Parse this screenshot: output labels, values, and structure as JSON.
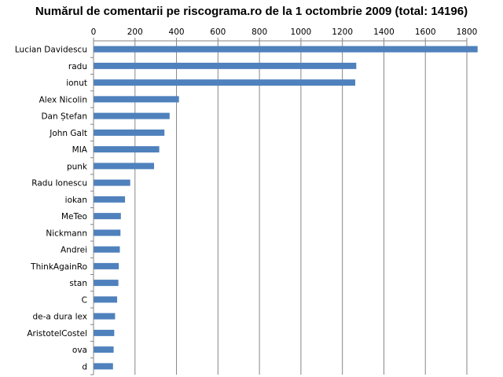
{
  "chart_data": {
    "type": "bar",
    "orientation": "horizontal",
    "title": "Numărul de comentarii pe riscograma.ro de la 1 octombrie 2009 (total: 14196)",
    "xlabel": "",
    "ylabel": "",
    "categories": [
      "Lucian Davidescu",
      "radu",
      "ionut",
      "Alex Nicolin",
      "Dan Ștefan",
      "John Galt",
      "MIA",
      "punk",
      "Radu Ionescu",
      "iokan",
      "MeTeo",
      "Nickmann",
      "Andrei",
      "ThinkAgainRo",
      "stan",
      "C",
      "de-a dura lex",
      "AristotelCostel",
      "ova",
      "d"
    ],
    "values": [
      1850,
      1265,
      1260,
      410,
      365,
      340,
      315,
      290,
      175,
      150,
      130,
      128,
      125,
      120,
      118,
      112,
      102,
      98,
      95,
      92
    ],
    "xlim": [
      0,
      1800
    ],
    "x_ticks": [
      0,
      200,
      400,
      600,
      800,
      1000,
      1200,
      1400,
      1600,
      1800
    ],
    "x_axis_position": "top",
    "grid": true,
    "legend": "none",
    "colors": {
      "bar": "#4f81bd",
      "grid": "#868686",
      "axis": "#868686"
    }
  }
}
